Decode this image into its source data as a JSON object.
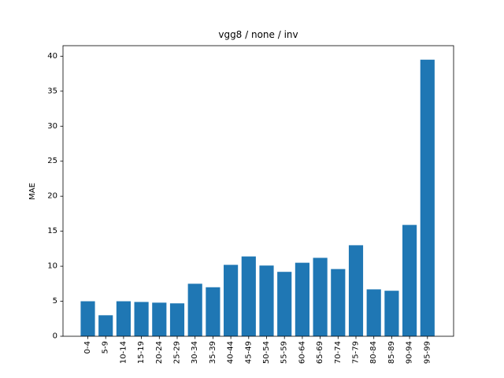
{
  "chart_data": {
    "type": "bar",
    "title": "vgg8 / none / inv",
    "xlabel": "",
    "ylabel": "MAE",
    "categories": [
      "0-4",
      "5-9",
      "10-14",
      "15-19",
      "20-24",
      "25-29",
      "30-34",
      "35-39",
      "40-44",
      "45-49",
      "50-54",
      "55-59",
      "60-64",
      "65-69",
      "70-74",
      "75-79",
      "80-84",
      "85-89",
      "90-94",
      "95-99"
    ],
    "values": [
      5.0,
      3.0,
      5.0,
      4.9,
      4.8,
      4.7,
      7.5,
      7.0,
      10.2,
      11.4,
      10.1,
      9.2,
      10.5,
      11.2,
      9.6,
      13.0,
      6.7,
      6.5,
      15.9,
      39.5
    ],
    "ylim": [
      0,
      41.5
    ],
    "yticks": [
      0,
      5,
      10,
      15,
      20,
      25,
      30,
      35,
      40
    ],
    "bar_color": "#1f77b4",
    "grid": false,
    "legend": "none"
  }
}
